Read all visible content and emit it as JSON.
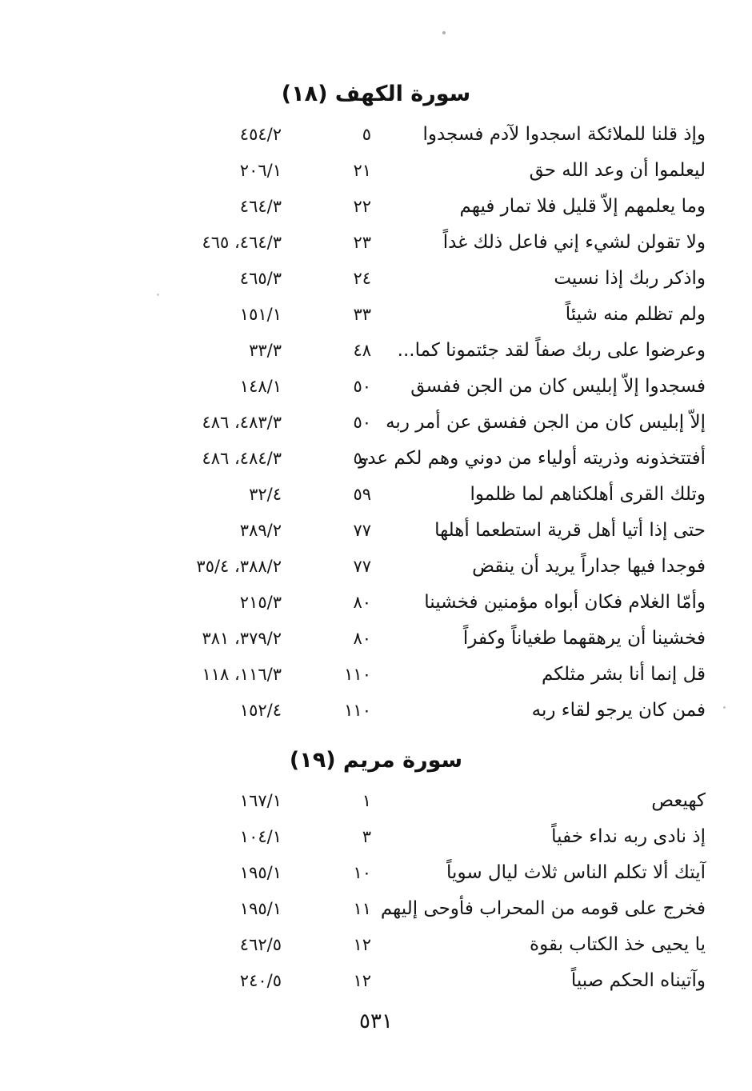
{
  "page": {
    "page_number": "٥٣١",
    "colors": {
      "ink": "#141414",
      "paper": "#ffffff"
    },
    "sections": [
      {
        "title": "سورة الكهف (١٨)",
        "rows": [
          {
            "text": "وإذ قلنا للملائكة اسجدوا لآدم فسجدوا",
            "verse": "٥",
            "ref": "٤٥٤/٢"
          },
          {
            "text": "ليعلموا أن وعد الله حق",
            "verse": "٢١",
            "ref": "٢٠٦/١"
          },
          {
            "text": "وما يعلمهم إلاّ قليل فلا تمار فيهم",
            "verse": "٢٢",
            "ref": "٤٦٤/٣"
          },
          {
            "text": "ولا تقولن لشيء إني فاعل ذلك غداً",
            "verse": "٢٣",
            "ref": "٤٦٤/٣، ٤٦٥"
          },
          {
            "text": "واذكر ربك إذا نسيت",
            "verse": "٢٤",
            "ref": "٤٦٥/٣"
          },
          {
            "text": "ولم تظلم منه شيئاً",
            "verse": "٣٣",
            "ref": "١٥١/١"
          },
          {
            "text": "وعرضوا على ربك صفاً لقد جئتمونا كما...",
            "verse": "٤٨",
            "ref": "٣٣/٣"
          },
          {
            "text": "فسجدوا إلاّ إبليس كان من الجن ففسق",
            "verse": "٥٠",
            "ref": "١٤٨/١"
          },
          {
            "text": "إلاّ إبليس كان من الجن ففسق عن أمر ربه",
            "verse": "٥٠",
            "ref": "٤٨٣/٣، ٤٨٦"
          },
          {
            "text": "أفتتخذونه وذريته أولياء من دوني وهم لكم عدو",
            "verse": "٥٠",
            "ref": "٤٨٤/٣، ٤٨٦"
          },
          {
            "text": "وتلك القرى أهلكناهم لما ظلموا",
            "verse": "٥٩",
            "ref": "٣٢/٤"
          },
          {
            "text": "حتى إذا أتيا أهل قرية استطعما أهلها",
            "verse": "٧٧",
            "ref": "٣٨٩/٢"
          },
          {
            "text": "فوجدا فيها جداراً يريد أن ينقض",
            "verse": "٧٧",
            "ref": "٣٨٨/٢، ٣٥/٤"
          },
          {
            "text": "وأمّا الغلام فكان أبواه مؤمنين فخشينا",
            "verse": "٨٠",
            "ref": "٢١٥/٣"
          },
          {
            "text": "فخشينا أن يرهقهما طغياناً وكفراً",
            "verse": "٨٠",
            "ref": "٣٧٩/٢، ٣٨١"
          },
          {
            "text": "قل إنما أنا بشر مثلكم",
            "verse": "١١٠",
            "ref": "١١٦/٣، ١١٨"
          },
          {
            "text": "فمن كان يرجو لقاء ربه",
            "verse": "١١٠",
            "ref": "١٥٢/٤"
          }
        ]
      },
      {
        "title": "سورة مريم (١٩)",
        "rows": [
          {
            "text": "كهيعص",
            "verse": "١",
            "ref": "١٦٧/١"
          },
          {
            "text": "إذ نادى ربه نداء خفياً",
            "verse": "٣",
            "ref": "١٠٤/١"
          },
          {
            "text": "آيتك ألا تكلم الناس ثلاث ليال سوياً",
            "verse": "١٠",
            "ref": "١٩٥/١"
          },
          {
            "text": "فخرج على قومه من المحراب فأوحى إليهم",
            "verse": "١١",
            "ref": "١٩٥/١"
          },
          {
            "text": "يا يحيى خذ الكتاب بقوة",
            "verse": "١٢",
            "ref": "٤٦٢/٥"
          },
          {
            "text": "وآتيناه الحكم صبياً",
            "verse": "١٢",
            "ref": "٢٤٠/٥"
          }
        ]
      }
    ]
  }
}
